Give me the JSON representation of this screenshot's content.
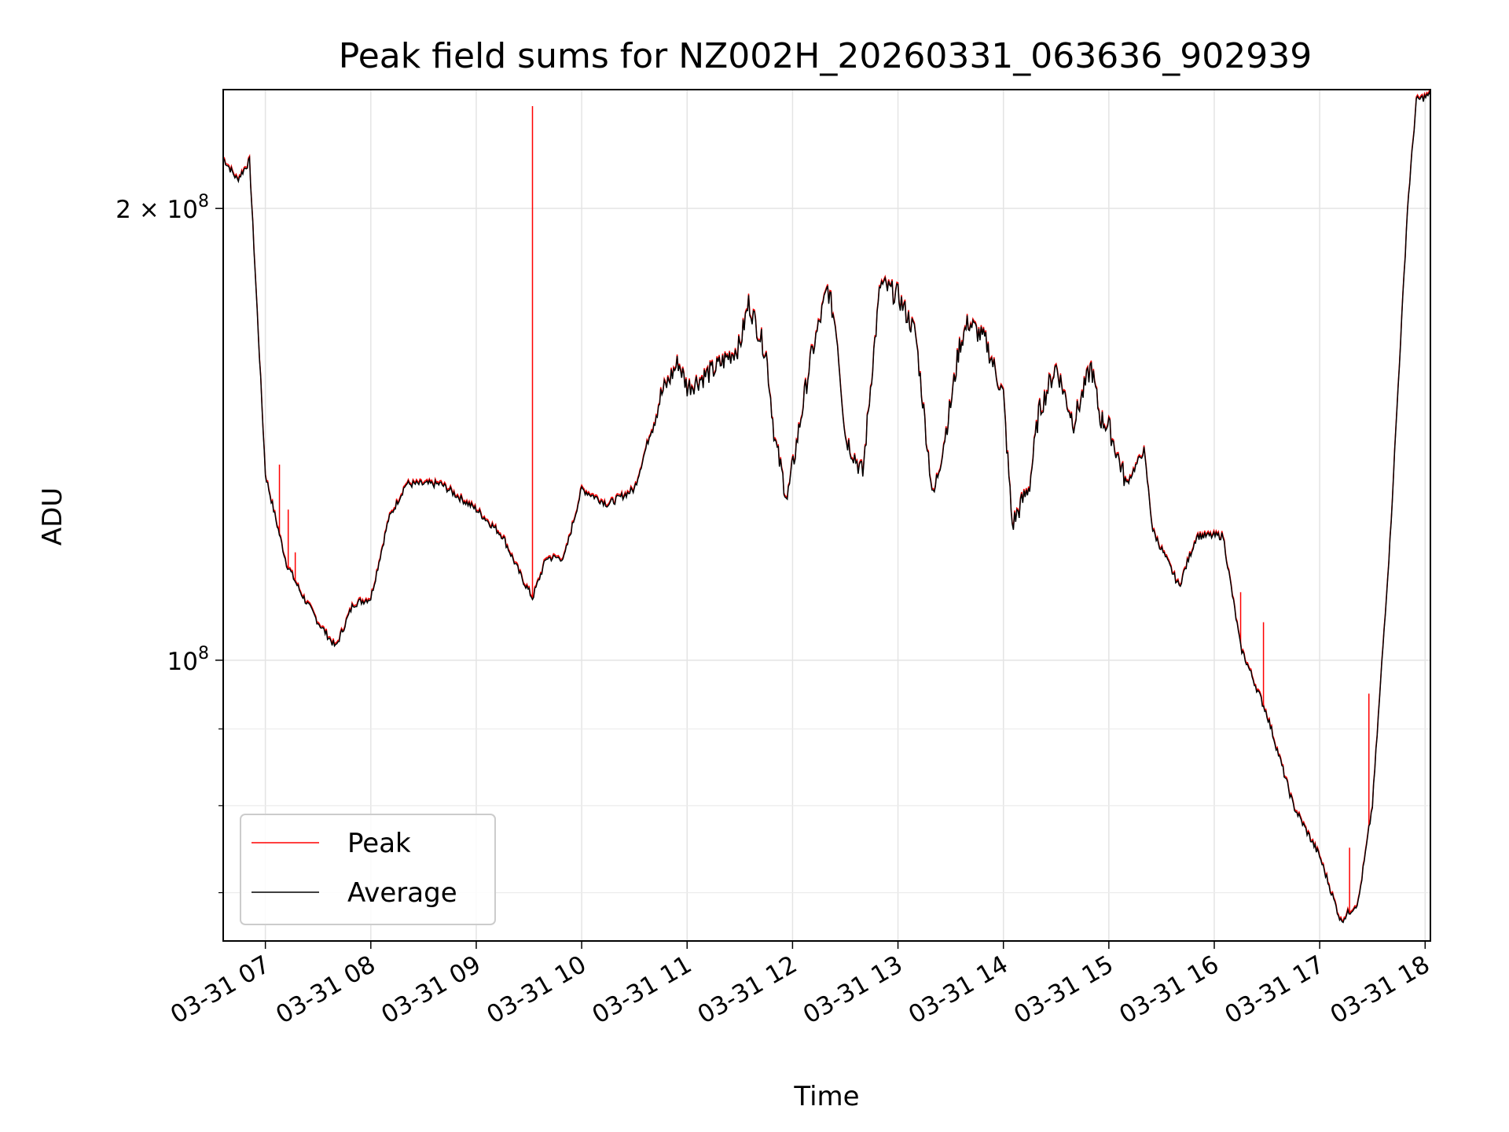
{
  "chart_data": {
    "type": "line",
    "title": "Peak field sums for NZ002H_20260331_063636_902939",
    "xlabel": "Time",
    "ylabel": "ADU",
    "yscale": "log",
    "grid": true,
    "legend_position": "lower-left",
    "xlim": [
      "2026-03-31 06:36",
      "2026-03-31 18:03"
    ],
    "ylim": [
      65000000,
      240000000
    ],
    "x_ticks": [
      {
        "value": "2026-03-31 07:00",
        "label": "03-31 07"
      },
      {
        "value": "2026-03-31 08:00",
        "label": "03-31 08"
      },
      {
        "value": "2026-03-31 09:00",
        "label": "03-31 09"
      },
      {
        "value": "2026-03-31 10:00",
        "label": "03-31 10"
      },
      {
        "value": "2026-03-31 11:00",
        "label": "03-31 11"
      },
      {
        "value": "2026-03-31 12:00",
        "label": "03-31 12"
      },
      {
        "value": "2026-03-31 13:00",
        "label": "03-31 13"
      },
      {
        "value": "2026-03-31 14:00",
        "label": "03-31 14"
      },
      {
        "value": "2026-03-31 15:00",
        "label": "03-31 15"
      },
      {
        "value": "2026-03-31 16:00",
        "label": "03-31 16"
      },
      {
        "value": "2026-03-31 17:00",
        "label": "03-31 17"
      },
      {
        "value": "2026-03-31 18:00",
        "label": "03-31 18"
      }
    ],
    "y_major_ticks": [
      {
        "value": 100000000,
        "base": "10",
        "exp": "8",
        "mant": ""
      },
      {
        "value": 200000000,
        "base": "10",
        "exp": "8",
        "mant": "2 × "
      }
    ],
    "y_minor_ticks": [
      70000000,
      80000000,
      90000000
    ],
    "series": [
      {
        "name": "Average",
        "color": "#000000",
        "points": [
          [
            "2026-03-31 06:36",
            216000000
          ],
          [
            "2026-03-31 06:44",
            209000000
          ],
          [
            "2026-03-31 06:51",
            215000000
          ],
          [
            "2026-03-31 06:56",
            165000000
          ],
          [
            "2026-03-31 07:00",
            133000000
          ],
          [
            "2026-03-31 07:06",
            124000000
          ],
          [
            "2026-03-31 07:12",
            116000000
          ],
          [
            "2026-03-31 07:20",
            111000000
          ],
          [
            "2026-03-31 07:30",
            106000000
          ],
          [
            "2026-03-31 07:40",
            102000000
          ],
          [
            "2026-03-31 07:50",
            109000000
          ],
          [
            "2026-03-31 08:00",
            110000000
          ],
          [
            "2026-03-31 08:10",
            124000000
          ],
          [
            "2026-03-31 08:20",
            131000000
          ],
          [
            "2026-03-31 08:40",
            131000000
          ],
          [
            "2026-03-31 09:00",
            126000000
          ],
          [
            "2026-03-31 09:15",
            121000000
          ],
          [
            "2026-03-31 09:25",
            114000000
          ],
          [
            "2026-03-31 09:32",
            110000000
          ],
          [
            "2026-03-31 09:40",
            117000000
          ],
          [
            "2026-03-31 09:50",
            117000000
          ],
          [
            "2026-03-31 10:00",
            130000000
          ],
          [
            "2026-03-31 10:15",
            127000000
          ],
          [
            "2026-03-31 10:30",
            130000000
          ],
          [
            "2026-03-31 10:45",
            150000000
          ],
          [
            "2026-03-31 10:55",
            158000000
          ],
          [
            "2026-03-31 11:00",
            152000000
          ],
          [
            "2026-03-31 11:15",
            156000000
          ],
          [
            "2026-03-31 11:30",
            162000000
          ],
          [
            "2026-03-31 11:35",
            173000000
          ],
          [
            "2026-03-31 11:45",
            160000000
          ],
          [
            "2026-03-31 11:50",
            140000000
          ],
          [
            "2026-03-31 11:57",
            128000000
          ],
          [
            "2026-03-31 12:10",
            158000000
          ],
          [
            "2026-03-31 12:20",
            177000000
          ],
          [
            "2026-03-31 12:25",
            166000000
          ],
          [
            "2026-03-31 12:30",
            141000000
          ],
          [
            "2026-03-31 12:40",
            133000000
          ],
          [
            "2026-03-31 12:45",
            155000000
          ],
          [
            "2026-03-31 12:50",
            178000000
          ],
          [
            "2026-03-31 13:00",
            175000000
          ],
          [
            "2026-03-31 13:10",
            165000000
          ],
          [
            "2026-03-31 13:20",
            128000000
          ],
          [
            "2026-03-31 13:30",
            148000000
          ],
          [
            "2026-03-31 13:35",
            162000000
          ],
          [
            "2026-03-31 13:40",
            168000000
          ],
          [
            "2026-03-31 13:50",
            163000000
          ],
          [
            "2026-03-31 14:00",
            150000000
          ],
          [
            "2026-03-31 14:05",
            123000000
          ],
          [
            "2026-03-31 14:15",
            131000000
          ],
          [
            "2026-03-31 14:20",
            146000000
          ],
          [
            "2026-03-31 14:30",
            157000000
          ],
          [
            "2026-03-31 14:35",
            150000000
          ],
          [
            "2026-03-31 14:40",
            144000000
          ],
          [
            "2026-03-31 14:50",
            157000000
          ],
          [
            "2026-03-31 14:55",
            145000000
          ],
          [
            "2026-03-31 15:00",
            143000000
          ],
          [
            "2026-03-31 15:10",
            131000000
          ],
          [
            "2026-03-31 15:20",
            138000000
          ],
          [
            "2026-03-31 15:25",
            122000000
          ],
          [
            "2026-03-31 15:40",
            112000000
          ],
          [
            "2026-03-31 15:50",
            121000000
          ],
          [
            "2026-03-31 16:05",
            121000000
          ],
          [
            "2026-03-31 16:15",
            102000000
          ],
          [
            "2026-03-31 16:30",
            92000000
          ],
          [
            "2026-03-31 16:45",
            80000000
          ],
          [
            "2026-03-31 17:00",
            74000000
          ],
          [
            "2026-03-31 17:12",
            67000000
          ],
          [
            "2026-03-31 17:22",
            69000000
          ],
          [
            "2026-03-31 17:30",
            80000000
          ],
          [
            "2026-03-31 17:40",
            120000000
          ],
          [
            "2026-03-31 17:50",
            200000000
          ],
          [
            "2026-03-31 17:55",
            236000000
          ],
          [
            "2026-03-31 18:03",
            238000000
          ]
        ]
      },
      {
        "name": "Peak",
        "color": "#ff0000",
        "note_spikes": true,
        "spikes": [
          [
            "2026-03-31 07:08",
            135000000
          ],
          [
            "2026-03-31 07:13",
            126000000
          ],
          [
            "2026-03-31 07:17",
            118000000
          ],
          [
            "2026-03-31 09:32",
            234000000
          ],
          [
            "2026-03-31 16:15",
            111000000
          ],
          [
            "2026-03-31 16:28",
            106000000
          ],
          [
            "2026-03-31 17:17",
            75000000
          ],
          [
            "2026-03-31 17:28",
            95000000
          ]
        ]
      }
    ]
  }
}
